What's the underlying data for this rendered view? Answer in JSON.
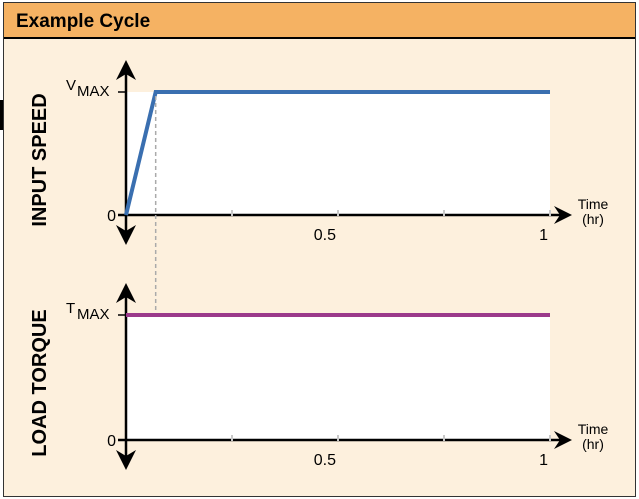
{
  "header": {
    "title": "Example Cycle"
  },
  "colors": {
    "header_bg": "#f5b263",
    "panel_bg": "#fdf0dd",
    "plot_bg": "#ffffff",
    "speed_line": "#3a6fb0",
    "torque_line": "#9b3a8b",
    "dashed": "#aaaaaa"
  },
  "chart_data": [
    {
      "type": "line",
      "ylabel": "INPUT SPEED",
      "level_label": "V",
      "level_sub": "MAX",
      "xlabel_line1": "Time",
      "xlabel_line2": "(hr)",
      "x_ticks": [
        "0.5",
        "1"
      ],
      "y_ticks": [
        "0"
      ],
      "xlim": [
        0,
        1
      ],
      "ylim": [
        0,
        1
      ],
      "series": [
        {
          "x": [
            0,
            0.07,
            1
          ],
          "y": [
            0,
            1,
            1
          ]
        }
      ]
    },
    {
      "type": "line",
      "ylabel": "LOAD TORQUE",
      "level_label": "T",
      "level_sub": "MAX",
      "xlabel_line1": "Time",
      "xlabel_line2": "(hr)",
      "x_ticks": [
        "0.5",
        "1"
      ],
      "y_ticks": [
        "0"
      ],
      "xlim": [
        0,
        1
      ],
      "ylim": [
        0,
        1
      ],
      "series": [
        {
          "x": [
            0,
            1
          ],
          "y": [
            1,
            1
          ]
        }
      ]
    }
  ]
}
